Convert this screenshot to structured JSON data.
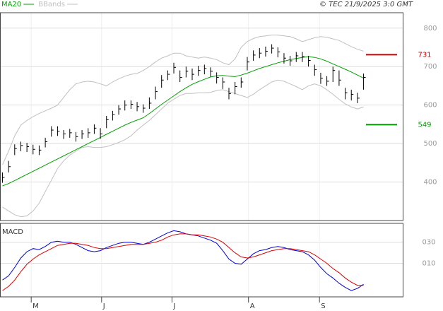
{
  "chart_data": [
    {
      "type": "ohlc",
      "credit": "© TEC 21/9/2025 3:0 GMT",
      "x": [
        0,
        1,
        2,
        3,
        4,
        5,
        6,
        7,
        8,
        9,
        10,
        11,
        12,
        13,
        14,
        15,
        16,
        17,
        18,
        19,
        20,
        21,
        22,
        23,
        24,
        25,
        26,
        27,
        28,
        29,
        30,
        31,
        32,
        33,
        34,
        35,
        36,
        37,
        38,
        39,
        40,
        41,
        42,
        43,
        44,
        45,
        46,
        47,
        48,
        49,
        50,
        51,
        52,
        53,
        54,
        55,
        56,
        57,
        58,
        59
      ],
      "xlim": [
        -0.4,
        65.4
      ],
      "ylim": [
        300,
        840
      ],
      "yticks": [
        400,
        500,
        600,
        700,
        800
      ],
      "grid": true,
      "bar_color": "#000000",
      "high": [
        425,
        455,
        498,
        505,
        502,
        497,
        495,
        515,
        545,
        545,
        535,
        538,
        530,
        535,
        540,
        550,
        540,
        572,
        585,
        600,
        612,
        612,
        608,
        602,
        620,
        648,
        678,
        690,
        710,
        690,
        700,
        695,
        702,
        705,
        698,
        685,
        672,
        645,
        660,
        672,
        725,
        742,
        748,
        752,
        758,
        750,
        735,
        728,
        738,
        738,
        728,
        705,
        684,
        675,
        700,
        690,
        645,
        640,
        632,
        682
      ],
      "low": [
        398,
        425,
        470,
        480,
        478,
        472,
        470,
        490,
        518,
        520,
        512,
        515,
        505,
        512,
        515,
        525,
        512,
        540,
        560,
        575,
        586,
        590,
        584,
        580,
        590,
        615,
        645,
        665,
        682,
        660,
        672,
        665,
        676,
        680,
        674,
        656,
        642,
        615,
        628,
        645,
        690,
        715,
        722,
        726,
        734,
        724,
        708,
        702,
        712,
        712,
        700,
        676,
        655,
        650,
        660,
        650,
        615,
        612,
        605,
        640
      ],
      "close": [
        412,
        440,
        487,
        495,
        492,
        485,
        483,
        505,
        535,
        532,
        525,
        528,
        518,
        525,
        528,
        540,
        525,
        562,
        575,
        590,
        600,
        602,
        596,
        592,
        605,
        635,
        665,
        680,
        698,
        672,
        688,
        680,
        690,
        695,
        688,
        672,
        660,
        630,
        648,
        660,
        712,
        730,
        735,
        740,
        748,
        738,
        722,
        715,
        728,
        726,
        716,
        692,
        670,
        662,
        690,
        665,
        632,
        628,
        618,
        672
      ],
      "series": [
        {
          "name": "MA20",
          "color": "#00a000",
          "values": [
            390,
            396,
            404,
            412,
            420,
            428,
            436,
            444,
            452,
            460,
            468,
            476,
            484,
            492,
            500,
            508,
            516,
            524,
            532,
            540,
            548,
            555,
            561,
            567,
            578,
            590,
            602,
            613,
            624,
            635,
            645,
            654,
            661,
            667,
            673,
            676,
            677,
            675,
            674,
            678,
            683,
            689,
            695,
            700,
            705,
            710,
            714,
            718,
            721,
            724,
            726,
            724,
            720,
            714,
            707,
            700,
            693,
            686,
            678,
            670
          ]
        },
        {
          "name": "BBands",
          "color": "#c0c0c0",
          "values": [
            445,
            480,
            520,
            548,
            560,
            570,
            578,
            585,
            592,
            600,
            620,
            640,
            655,
            660,
            662,
            660,
            655,
            650,
            660,
            668,
            675,
            680,
            682,
            690,
            700,
            712,
            722,
            728,
            735,
            735,
            728,
            725,
            722,
            725,
            722,
            718,
            710,
            705,
            720,
            750,
            765,
            773,
            778,
            780,
            782,
            782,
            780,
            778,
            772,
            765,
            770,
            775,
            778,
            776,
            772,
            768,
            760,
            752,
            745,
            740
          ],
          "lower": [
            335,
            325,
            315,
            310,
            312,
            325,
            345,
            375,
            405,
            435,
            455,
            470,
            480,
            490,
            492,
            490,
            490,
            492,
            497,
            503,
            510,
            520,
            535,
            548,
            560,
            575,
            590,
            605,
            615,
            625,
            630,
            630,
            632,
            632,
            633,
            638,
            640,
            635,
            630,
            625,
            620,
            628,
            640,
            650,
            660,
            665,
            662,
            655,
            648,
            640,
            650,
            655,
            650,
            640,
            628,
            615,
            603,
            595,
            590,
            595
          ]
        }
      ],
      "levels": [
        {
          "value": 731,
          "color": "#cc0000"
        },
        {
          "value": 549,
          "color": "#009900"
        }
      ]
    },
    {
      "type": "line",
      "title": "MACD",
      "x": [
        0,
        1,
        2,
        3,
        4,
        5,
        6,
        7,
        8,
        9,
        10,
        11,
        12,
        13,
        14,
        15,
        16,
        17,
        18,
        19,
        20,
        21,
        22,
        23,
        24,
        25,
        26,
        27,
        28,
        29,
        30,
        31,
        32,
        33,
        34,
        35,
        36,
        37,
        38,
        39,
        40,
        41,
        42,
        43,
        44,
        45,
        46,
        47,
        48,
        49,
        50,
        51,
        52,
        53,
        54,
        55,
        56,
        57,
        58,
        59
      ],
      "xlim": [
        -0.4,
        65.4
      ],
      "xticks": [
        {
          "value": 4.7,
          "label": "M"
        },
        {
          "value": 16.2,
          "label": "J"
        },
        {
          "value": 27.7,
          "label": "J"
        },
        {
          "value": 40.2,
          "label": "A"
        },
        {
          "value": 51.8,
          "label": "S"
        }
      ],
      "ylim": [
        -22,
        48
      ],
      "yticks": [
        {
          "value": 30,
          "label": "030"
        },
        {
          "value": 10,
          "label": "010"
        }
      ],
      "grid": true,
      "series": [
        {
          "color": "#0000dd",
          "values": [
            -6,
            -2,
            6,
            15,
            21,
            24,
            23,
            26,
            30,
            31,
            30,
            30,
            28,
            25,
            22,
            21,
            22,
            25,
            27,
            29,
            30,
            30,
            29,
            28,
            30,
            33,
            36,
            39,
            41,
            40,
            38,
            37,
            36,
            34,
            32,
            29,
            22,
            14,
            10,
            9,
            14,
            19,
            22,
            23,
            25,
            26,
            25,
            23,
            22,
            21,
            18,
            13,
            6,
            0,
            -4,
            -9,
            -13,
            -16,
            -14,
            -10
          ]
        },
        {
          "color": "#dd0000",
          "values": [
            -16,
            -12,
            -6,
            2,
            9,
            14,
            18,
            21,
            24,
            27,
            28,
            29,
            29,
            28,
            27,
            25,
            24,
            24,
            25,
            26,
            27,
            28,
            28,
            28,
            29,
            30,
            32,
            35,
            37,
            38,
            38,
            37,
            37,
            36,
            35,
            33,
            30,
            25,
            20,
            16,
            15,
            16,
            18,
            20,
            22,
            23,
            24,
            24,
            23,
            22,
            21,
            18,
            14,
            10,
            5,
            1,
            -4,
            -8,
            -11,
            -11
          ]
        }
      ]
    }
  ]
}
